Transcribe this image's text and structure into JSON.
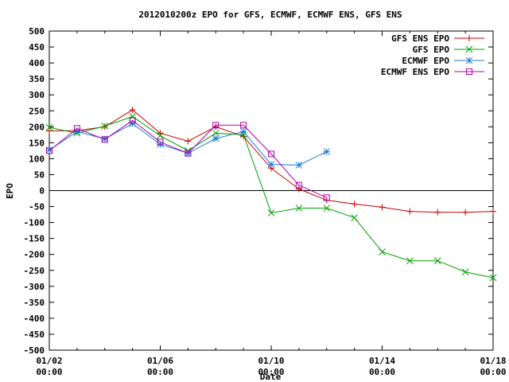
{
  "chart_data": {
    "type": "line",
    "title": "2012010200z EPO for GFS, ECMWF, ECMWF ENS, GFS ENS",
    "xlabel": "Date",
    "ylabel": "EPO",
    "ylim": [
      -500,
      500
    ],
    "xlim": [
      0,
      16
    ],
    "y_ticks": [
      -500,
      -450,
      -400,
      -350,
      -300,
      -250,
      -200,
      -150,
      -100,
      -50,
      0,
      50,
      100,
      150,
      200,
      250,
      300,
      350,
      400,
      450,
      500
    ],
    "x_ticks": [
      {
        "x": 0,
        "line1": "01/02",
        "line2": "00:00"
      },
      {
        "x": 4,
        "line1": "01/06",
        "line2": "00:00"
      },
      {
        "x": 8,
        "line1": "01/10",
        "line2": "00:00"
      },
      {
        "x": 12,
        "line1": "01/14",
        "line2": "00:00"
      },
      {
        "x": 16,
        "line1": "01/18",
        "line2": "00:00"
      }
    ],
    "zero_line": true,
    "grid": false,
    "legend_position": "top-right",
    "series": [
      {
        "name": "GFS ENS EPO",
        "color": "#cc0000",
        "marker": "plus",
        "x": [
          0,
          1,
          2,
          3,
          4,
          5,
          6,
          7,
          8,
          9,
          10,
          11,
          12,
          13,
          14,
          15,
          16
        ],
        "y": [
          187,
          188,
          200,
          253,
          180,
          155,
          200,
          170,
          70,
          5,
          -30,
          -42,
          -52,
          -65,
          -68,
          -68,
          -65
        ]
      },
      {
        "name": "GFS EPO",
        "color": "#00a000",
        "marker": "x",
        "x": [
          0,
          1,
          2,
          3,
          4,
          5,
          6,
          7,
          8,
          9,
          10,
          11,
          12,
          13,
          14,
          15,
          16
        ],
        "y": [
          198,
          180,
          202,
          232,
          172,
          125,
          180,
          175,
          -70,
          -55,
          -55,
          -85,
          -192,
          -220,
          -220,
          -255,
          -273
        ]
      },
      {
        "name": "ECMWF EPO",
        "color": "#1e7fd6",
        "marker": "star",
        "x": [
          0,
          1,
          2,
          3,
          4,
          5,
          6,
          7,
          8,
          9,
          10
        ],
        "y": [
          127,
          185,
          162,
          210,
          145,
          117,
          163,
          185,
          82,
          80,
          122
        ]
      },
      {
        "name": "ECMWF ENS EPO",
        "color": "#b000b0",
        "marker": "box",
        "x": [
          0,
          1,
          2,
          3,
          4,
          5,
          6,
          7,
          8,
          9,
          10
        ],
        "y": [
          125,
          195,
          160,
          220,
          152,
          117,
          205,
          205,
          115,
          17,
          -22
        ]
      }
    ]
  }
}
